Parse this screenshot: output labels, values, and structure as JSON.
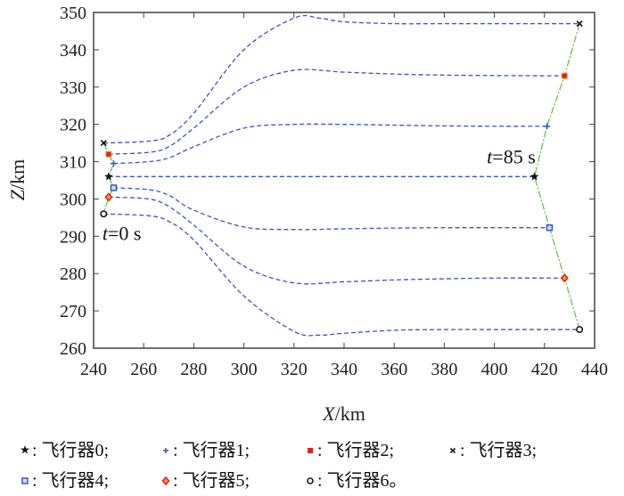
{
  "chart_data": {
    "type": "line",
    "xlabel_var": "X",
    "xlabel_unit": "/km",
    "ylabel_var": "Z",
    "ylabel_unit": "/km",
    "xlim": [
      240,
      440
    ],
    "ylim": [
      260,
      350
    ],
    "xticks": [
      240,
      260,
      280,
      300,
      320,
      340,
      360,
      380,
      400,
      420,
      440
    ],
    "yticks": [
      260,
      270,
      280,
      290,
      300,
      310,
      320,
      330,
      340,
      350
    ],
    "grid": false,
    "annotations": [
      {
        "var": "t",
        "text": "=0 s"
      },
      {
        "var": "t",
        "text": "=85 s"
      }
    ],
    "trajectory_color": "#3a55c8",
    "formation_line_color": "#6cc24a",
    "series": [
      {
        "name": "飞行器0",
        "marker": "star",
        "color": "#111111",
        "x": [
          246,
          260,
          280,
          300,
          320,
          340,
          360,
          380,
          400,
          416
        ],
        "z": [
          306,
          306,
          306,
          306,
          306,
          306,
          306,
          306,
          306,
          306
        ]
      },
      {
        "name": "飞行器1",
        "marker": "plus",
        "color": "#3a55c8",
        "x": [
          248,
          262,
          270,
          280,
          300,
          320,
          340,
          360,
          380,
          400,
          421
        ],
        "z": [
          309.5,
          310,
          311,
          314,
          319,
          320,
          320,
          319.8,
          319.6,
          319.5,
          319.5
        ]
      },
      {
        "name": "飞行器2",
        "marker": "square-filled",
        "color": "#e02020",
        "x": [
          246,
          262,
          270,
          280,
          300,
          320,
          340,
          360,
          380,
          400,
          428
        ],
        "z": [
          312,
          312.5,
          314,
          319,
          330,
          334.5,
          334,
          333.5,
          333.2,
          333.1,
          333
        ]
      },
      {
        "name": "飞行器3",
        "marker": "x",
        "color": "#111111",
        "x": [
          244,
          262,
          270,
          280,
          300,
          320,
          330,
          340,
          360,
          380,
          400,
          434
        ],
        "z": [
          315,
          315.5,
          317,
          323,
          340,
          348.5,
          348.5,
          347.5,
          347,
          347,
          347,
          347
        ]
      },
      {
        "name": "飞行器4",
        "marker": "square",
        "color": "#3a55c8",
        "x": [
          248,
          262,
          270,
          280,
          300,
          320,
          340,
          360,
          380,
          400,
          422
        ],
        "z": [
          303,
          302.5,
          301,
          297,
          292.5,
          291.8,
          292,
          292.2,
          292.3,
          292.3,
          292.3
        ]
      },
      {
        "name": "飞行器5",
        "marker": "diamond",
        "color": "#e02020",
        "x": [
          246,
          262,
          270,
          280,
          300,
          320,
          340,
          360,
          380,
          400,
          428
        ],
        "z": [
          300.5,
          300,
          298,
          293,
          282,
          277.5,
          277.8,
          278.3,
          278.6,
          278.8,
          278.8
        ]
      },
      {
        "name": "飞行器6",
        "marker": "circle",
        "color": "#111111",
        "x": [
          244,
          262,
          270,
          280,
          300,
          320,
          330,
          340,
          360,
          380,
          400,
          434
        ],
        "z": [
          296,
          295.5,
          294,
          289,
          274,
          264.5,
          263.5,
          264,
          264.8,
          265,
          265,
          265
        ]
      }
    ],
    "formation_start_order": [
      3,
      2,
      1,
      0,
      4,
      5,
      6
    ],
    "formation_end_order": [
      3,
      2,
      1,
      0,
      4,
      5,
      6
    ]
  },
  "legend": {
    "row1": [
      {
        "glyph": "★",
        "sep": ": ",
        "name": "飞行器0",
        "end": ";"
      },
      {
        "glyph": "+",
        "sep": ": ",
        "name": "飞行器1",
        "end": ";"
      },
      {
        "glyph": "■",
        "sep": ": ",
        "name": "飞行器2",
        "end": ";"
      },
      {
        "glyph": "×",
        "sep": ": ",
        "name": "飞行器3",
        "end": ";"
      }
    ],
    "row2": [
      {
        "glyph": "□",
        "sep": ": ",
        "name": "飞行器4",
        "end": ";"
      },
      {
        "glyph": "◇",
        "sep": ": ",
        "name": "飞行器5",
        "end": ";"
      },
      {
        "glyph": "○",
        "sep": ": ",
        "name": "飞行器6",
        "end": "。"
      }
    ]
  }
}
